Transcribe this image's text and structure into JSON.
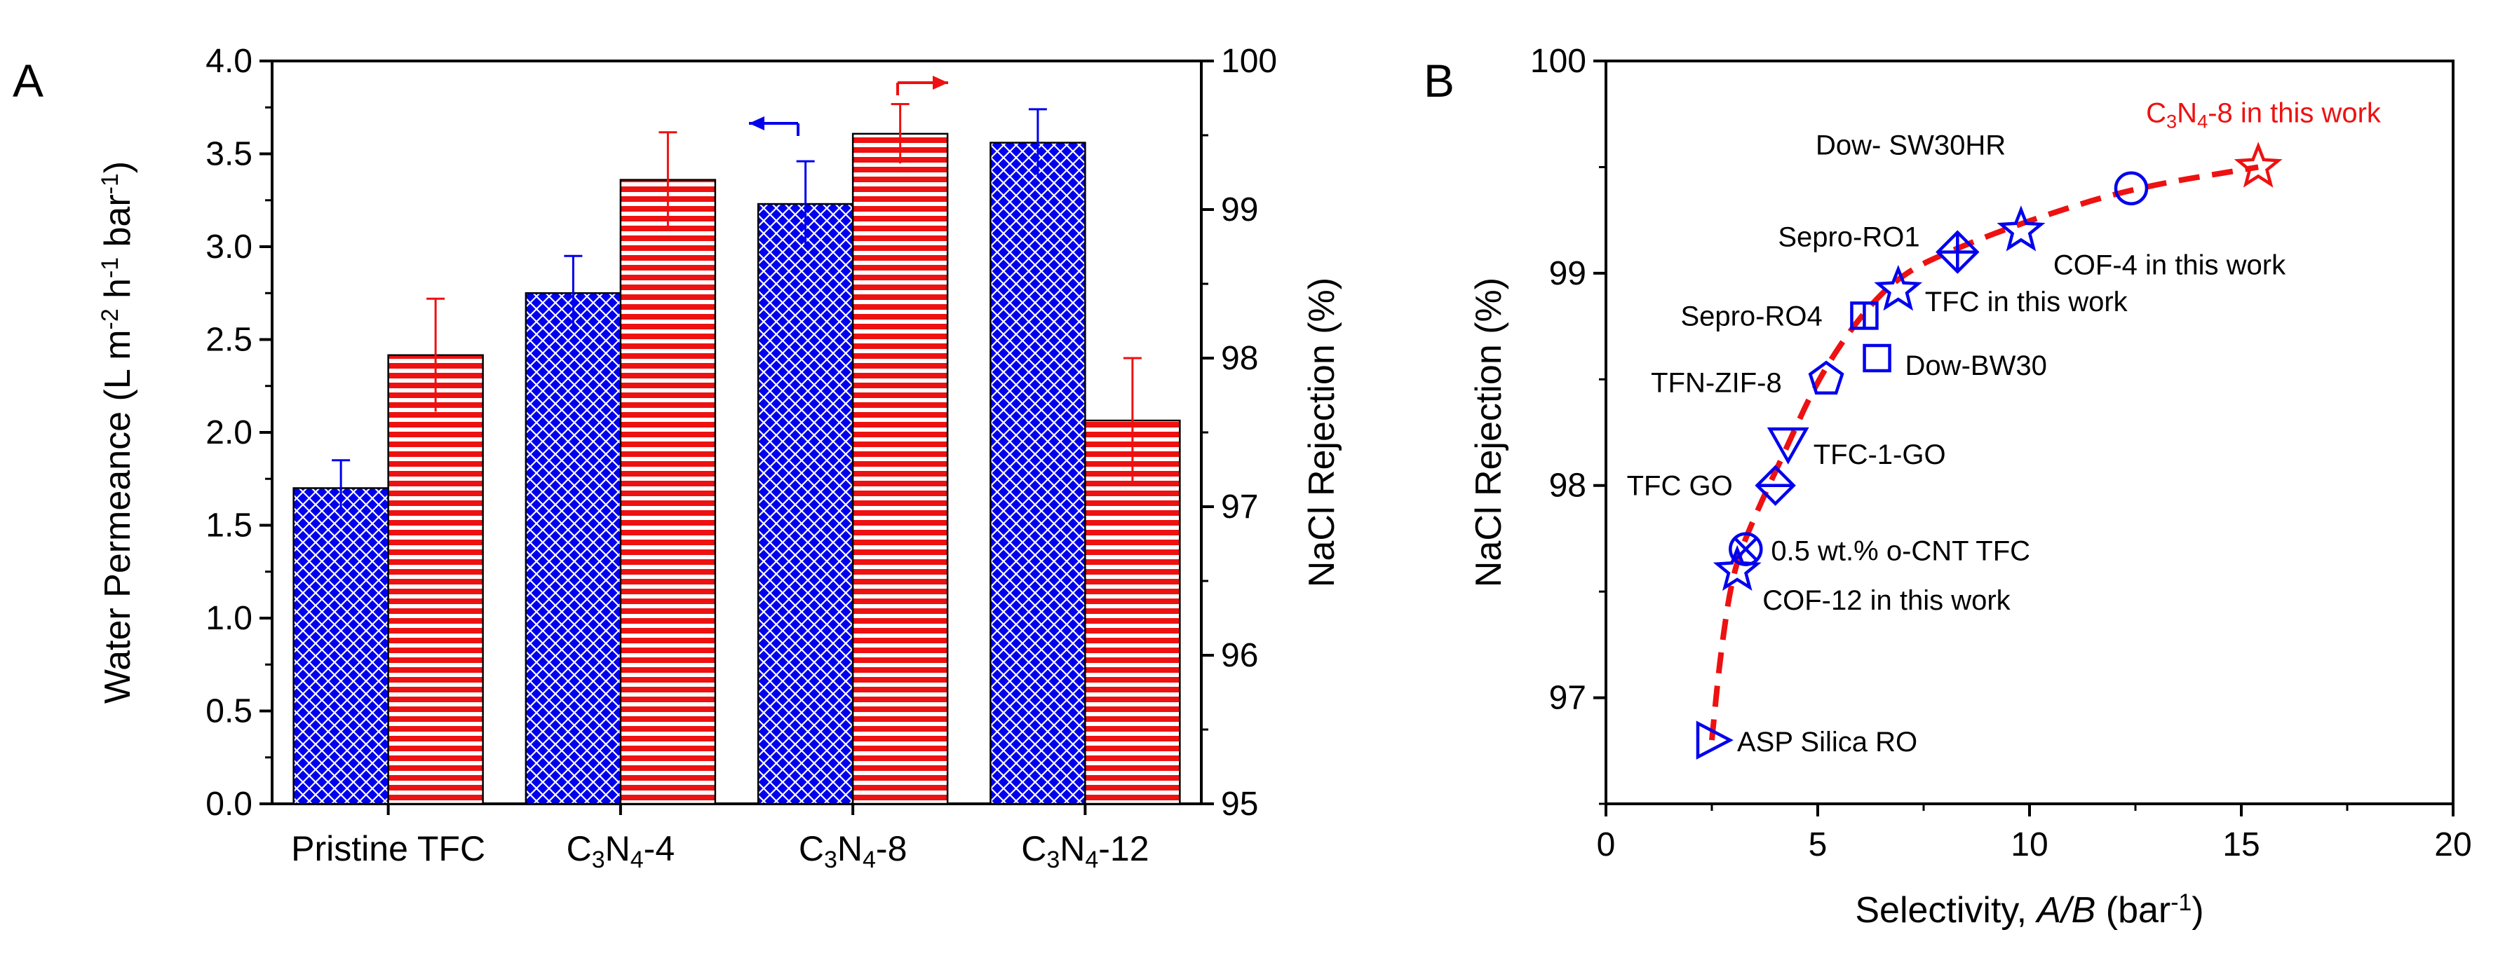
{
  "chart_data": [
    {
      "type": "bar",
      "panel_label": "A",
      "categories": [
        "Pristine TFC",
        "C3N4-4",
        "C3N4-8",
        "C3N4-12"
      ],
      "category_labels": [
        {
          "text": "Pristine TFC"
        },
        {
          "pre": "C",
          "sub1": "3",
          "mid": "N",
          "sub2": "4",
          "post": "-4"
        },
        {
          "pre": "C",
          "sub1": "3",
          "mid": "N",
          "sub2": "4",
          "post": "-8"
        },
        {
          "pre": "C",
          "sub1": "3",
          "mid": "N",
          "sub2": "4",
          "post": "-12"
        }
      ],
      "ylabel_left": {
        "text": "Water Permeance (L m",
        "sup1": "-2",
        "mid1": " h",
        "sup2": "-1",
        "mid2": " bar",
        "sup3": "-1",
        "post": ")"
      },
      "ylabel_right": "NaCl Rejection (%)",
      "ylim_left": [
        0,
        4.0
      ],
      "ylim_right": [
        95,
        100
      ],
      "yticks_left": [
        "0.0",
        "0.5",
        "1.0",
        "1.5",
        "2.0",
        "2.5",
        "3.0",
        "3.5",
        "4.0"
      ],
      "yticks_right": [
        "95",
        "96",
        "97",
        "98",
        "99",
        "100"
      ],
      "series": [
        {
          "axis": "left",
          "color": "#0000ee",
          "pattern": "crosshatch",
          "values": [
            1.7,
            2.75,
            3.23,
            3.56
          ],
          "errors": [
            0.15,
            0.2,
            0.23,
            0.18
          ]
        },
        {
          "axis": "right",
          "color": "#ee1111",
          "pattern": "horizontal-lines",
          "values": [
            98.02,
            99.2,
            99.51,
            97.58
          ],
          "errors": [
            0.38,
            0.32,
            0.2,
            0.42
          ]
        }
      ],
      "axis_arrows": [
        {
          "points_to": "left",
          "color": "#0000ee"
        },
        {
          "points_to": "right",
          "color": "#ee1111"
        }
      ]
    },
    {
      "type": "scatter",
      "panel_label": "B",
      "xlabel": {
        "text": "Selectivity, ",
        "italic": "A/B",
        "post": " (bar",
        "sup": "-1",
        "post2": ")"
      },
      "ylabel": "NaCl Rejection (%)",
      "xlim": [
        0,
        20
      ],
      "ylim": [
        96.5,
        100
      ],
      "xticks": [
        "0",
        "5",
        "10",
        "15",
        "20"
      ],
      "yticks": [
        "97",
        "98",
        "99",
        "100"
      ],
      "trend_line": {
        "color": "#ee1111",
        "style": "dashed",
        "points": [
          [
            2.5,
            96.8
          ],
          [
            2.7,
            97.2
          ],
          [
            3.0,
            97.6
          ],
          [
            3.5,
            97.85
          ],
          [
            4.2,
            98.15
          ],
          [
            5.0,
            98.5
          ],
          [
            6.0,
            98.8
          ],
          [
            7.0,
            99.0
          ],
          [
            8.3,
            99.12
          ],
          [
            10.0,
            99.25
          ],
          [
            12.4,
            99.4
          ],
          [
            15.4,
            99.5
          ]
        ]
      },
      "points": [
        {
          "x": 15.4,
          "y": 99.5,
          "marker": "star",
          "color": "#ee1111",
          "label": {
            "pre": "C",
            "sub1": "3",
            "mid": "N",
            "sub2": "4",
            "post": "-8 in this work"
          },
          "label_color": "#ee1111"
        },
        {
          "x": 12.4,
          "y": 99.4,
          "marker": "circle",
          "color": "#0000ee",
          "label": {
            "text": "Dow- SW30HR"
          }
        },
        {
          "x": 9.8,
          "y": 99.2,
          "marker": "star",
          "color": "#0000ee",
          "label": {
            "text": "COF-4 in this work"
          }
        },
        {
          "x": 8.3,
          "y": 99.1,
          "marker": "diamond-cross",
          "color": "#0000ee",
          "label": {
            "text": "Sepro-RO1"
          }
        },
        {
          "x": 6.9,
          "y": 98.92,
          "marker": "star",
          "color": "#0000ee",
          "label": {
            "text": "TFC in this work"
          }
        },
        {
          "x": 6.1,
          "y": 98.8,
          "marker": "square-cross",
          "color": "#0000ee",
          "label": {
            "text": "Sepro-RO4"
          }
        },
        {
          "x": 6.4,
          "y": 98.6,
          "marker": "square",
          "color": "#0000ee",
          "label": {
            "text": "Dow-BW30"
          }
        },
        {
          "x": 5.2,
          "y": 98.5,
          "marker": "pentagon",
          "color": "#0000ee",
          "label": {
            "text": "TFN-ZIF-8"
          }
        },
        {
          "x": 4.3,
          "y": 98.2,
          "marker": "triangle-down",
          "color": "#0000ee",
          "label": {
            "text": "TFC-1-GO"
          }
        },
        {
          "x": 4.0,
          "y": 98.0,
          "marker": "diamond-bar",
          "color": "#0000ee",
          "label": {
            "text": "TFC GO"
          }
        },
        {
          "x": 3.3,
          "y": 97.7,
          "marker": "circle-x",
          "color": "#0000ee",
          "label": {
            "text": "0.5 wt.% o-CNT TFC"
          }
        },
        {
          "x": 3.1,
          "y": 97.6,
          "marker": "star",
          "color": "#0000ee",
          "label": {
            "text": "COF-12 in this work"
          }
        },
        {
          "x": 2.5,
          "y": 96.8,
          "marker": "triangle-right",
          "color": "#0000ee",
          "label": {
            "text": "ASP Silica RO"
          }
        }
      ]
    }
  ]
}
